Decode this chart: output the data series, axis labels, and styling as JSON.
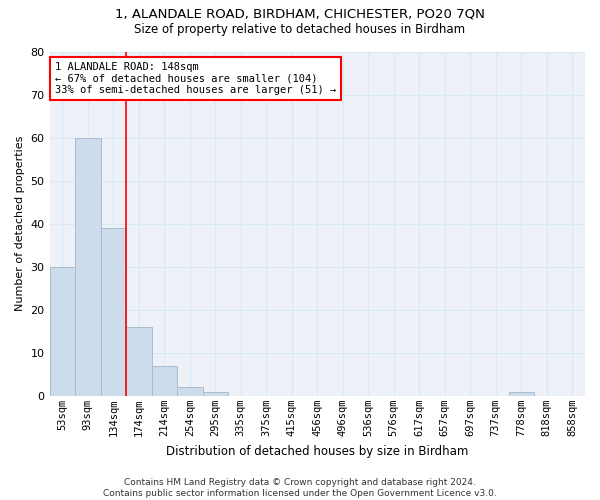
{
  "title1": "1, ALANDALE ROAD, BIRDHAM, CHICHESTER, PO20 7QN",
  "title2": "Size of property relative to detached houses in Birdham",
  "xlabel": "Distribution of detached houses by size in Birdham",
  "ylabel": "Number of detached properties",
  "categories": [
    "53sqm",
    "93sqm",
    "134sqm",
    "174sqm",
    "214sqm",
    "254sqm",
    "295sqm",
    "335sqm",
    "375sqm",
    "415sqm",
    "456sqm",
    "496sqm",
    "536sqm",
    "576sqm",
    "617sqm",
    "657sqm",
    "697sqm",
    "737sqm",
    "778sqm",
    "818sqm",
    "858sqm"
  ],
  "values": [
    30,
    60,
    39,
    16,
    7,
    2,
    1,
    0,
    0,
    0,
    0,
    0,
    0,
    0,
    0,
    0,
    0,
    0,
    1,
    0,
    0
  ],
  "bar_color": "#ccdcec",
  "bar_edge_color": "#aabccc",
  "grid_color": "#d8e8f4",
  "background_color": "#eef2f8",
  "vline_x": 2.5,
  "vline_color": "red",
  "annotation_text": "1 ALANDALE ROAD: 148sqm\n← 67% of detached houses are smaller (104)\n33% of semi-detached houses are larger (51) →",
  "annotation_box_color": "white",
  "annotation_box_edge_color": "red",
  "ylim": [
    0,
    80
  ],
  "yticks": [
    0,
    10,
    20,
    30,
    40,
    50,
    60,
    70,
    80
  ],
  "footer": "Contains HM Land Registry data © Crown copyright and database right 2024.\nContains public sector information licensed under the Open Government Licence v3.0.",
  "title1_fontsize": 9.5,
  "title2_fontsize": 8.5,
  "xlabel_fontsize": 8.5,
  "ylabel_fontsize": 8,
  "tick_fontsize": 7.5,
  "annotation_fontsize": 7.5,
  "footer_fontsize": 6.5
}
